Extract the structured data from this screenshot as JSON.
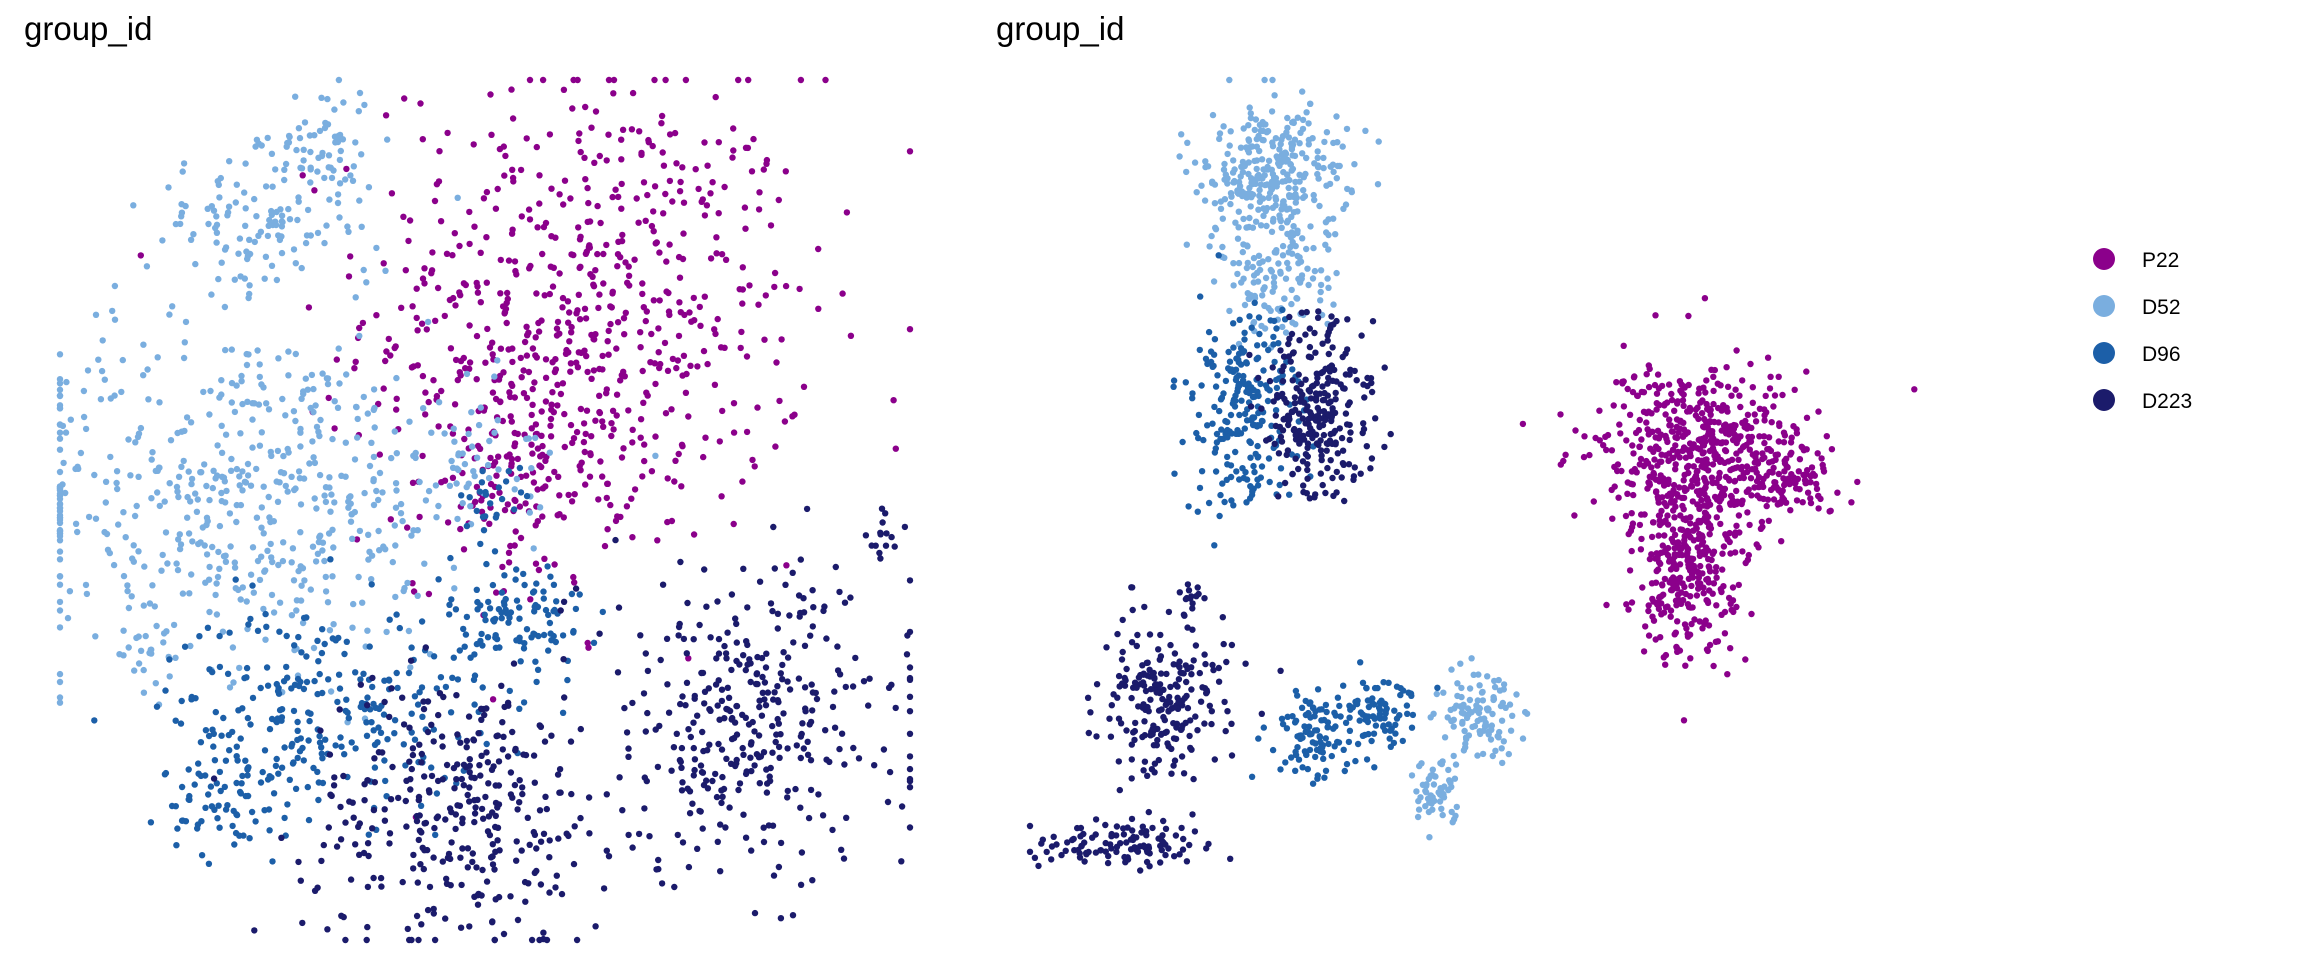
{
  "chart_data": [
    {
      "type": "scatter",
      "title": "group_id",
      "xlabel": "",
      "ylabel": "",
      "grid": false,
      "axes": false,
      "point_style": "small filled dots",
      "clusters": [
        {
          "group": "P22",
          "x": 0.62,
          "y": 0.73,
          "sx": 0.13,
          "sy": 0.14,
          "n": 620
        },
        {
          "group": "P22",
          "x": 0.54,
          "y": 0.55,
          "sx": 0.06,
          "sy": 0.07,
          "n": 140
        },
        {
          "group": "D52",
          "x": 0.22,
          "y": 0.52,
          "sx": 0.15,
          "sy": 0.1,
          "n": 560
        },
        {
          "group": "D52",
          "x": 0.22,
          "y": 0.83,
          "sx": 0.06,
          "sy": 0.04,
          "n": 110
        },
        {
          "group": "D52",
          "x": 0.31,
          "y": 0.92,
          "sx": 0.03,
          "sy": 0.04,
          "n": 70
        },
        {
          "group": "D52",
          "x": 0.49,
          "y": 0.57,
          "sx": 0.03,
          "sy": 0.04,
          "n": 35
        },
        {
          "group": "D52",
          "x": 0.1,
          "y": 0.34,
          "sx": 0.02,
          "sy": 0.02,
          "n": 18
        },
        {
          "group": "D96",
          "x": 0.31,
          "y": 0.27,
          "sx": 0.09,
          "sy": 0.06,
          "n": 240
        },
        {
          "group": "D96",
          "x": 0.54,
          "y": 0.37,
          "sx": 0.04,
          "sy": 0.04,
          "n": 110
        },
        {
          "group": "D96",
          "x": 0.2,
          "y": 0.17,
          "sx": 0.04,
          "sy": 0.04,
          "n": 80
        },
        {
          "group": "D96",
          "x": 0.51,
          "y": 0.51,
          "sx": 0.02,
          "sy": 0.02,
          "n": 25
        },
        {
          "group": "D223",
          "x": 0.47,
          "y": 0.15,
          "sx": 0.09,
          "sy": 0.08,
          "n": 330
        },
        {
          "group": "D223",
          "x": 0.81,
          "y": 0.25,
          "sx": 0.1,
          "sy": 0.09,
          "n": 360
        },
        {
          "group": "D223",
          "x": 0.97,
          "y": 0.47,
          "sx": 0.01,
          "sy": 0.02,
          "n": 15
        }
      ]
    },
    {
      "type": "scatter",
      "title": "group_id",
      "xlabel": "",
      "ylabel": "",
      "grid": false,
      "axes": false,
      "point_style": "small filled dots",
      "clusters": [
        {
          "group": "P22",
          "x": 0.74,
          "y": 0.57,
          "sx": 0.06,
          "sy": 0.05,
          "n": 520
        },
        {
          "group": "P22",
          "x": 0.73,
          "y": 0.44,
          "sx": 0.03,
          "sy": 0.06,
          "n": 330
        },
        {
          "group": "P22",
          "x": 0.84,
          "y": 0.53,
          "sx": 0.03,
          "sy": 0.02,
          "n": 90
        },
        {
          "group": "D52",
          "x": 0.27,
          "y": 0.89,
          "sx": 0.04,
          "sy": 0.04,
          "n": 300
        },
        {
          "group": "D52",
          "x": 0.28,
          "y": 0.78,
          "sx": 0.03,
          "sy": 0.04,
          "n": 130
        },
        {
          "group": "D52",
          "x": 0.5,
          "y": 0.26,
          "sx": 0.025,
          "sy": 0.025,
          "n": 110
        },
        {
          "group": "D52",
          "x": 0.45,
          "y": 0.17,
          "sx": 0.015,
          "sy": 0.02,
          "n": 60
        },
        {
          "group": "D96",
          "x": 0.24,
          "y": 0.61,
          "sx": 0.03,
          "sy": 0.06,
          "n": 230
        },
        {
          "group": "D96",
          "x": 0.32,
          "y": 0.24,
          "sx": 0.025,
          "sy": 0.025,
          "n": 110
        },
        {
          "group": "D96",
          "x": 0.39,
          "y": 0.27,
          "sx": 0.02,
          "sy": 0.025,
          "n": 70
        },
        {
          "group": "D223",
          "x": 0.32,
          "y": 0.62,
          "sx": 0.03,
          "sy": 0.05,
          "n": 270
        },
        {
          "group": "D223",
          "x": 0.15,
          "y": 0.28,
          "sx": 0.035,
          "sy": 0.045,
          "n": 220
        },
        {
          "group": "D223",
          "x": 0.1,
          "y": 0.11,
          "sx": 0.05,
          "sy": 0.015,
          "n": 110
        },
        {
          "group": "D223",
          "x": 0.18,
          "y": 0.4,
          "sx": 0.01,
          "sy": 0.01,
          "n": 14
        }
      ]
    }
  ],
  "legend": {
    "placement": "right",
    "entries": [
      {
        "label": "P22",
        "color": "#8B008B"
      },
      {
        "label": "D52",
        "color": "#7AAEDF"
      },
      {
        "label": "D96",
        "color": "#1C5FA8"
      },
      {
        "label": "D223",
        "color": "#1B1B6B"
      }
    ]
  }
}
